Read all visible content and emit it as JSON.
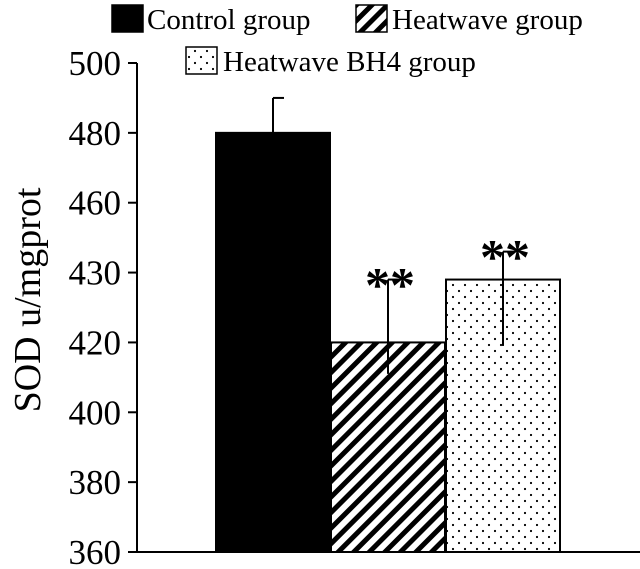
{
  "chart_data": {
    "type": "bar",
    "ylabel": "SOD u/mgprot",
    "xlabel": "",
    "ylim": [
      360,
      500
    ],
    "yticks": [
      500,
      480,
      460,
      430,
      420,
      400,
      380,
      360
    ],
    "grid": false,
    "legend_position": "top",
    "bars": [
      {
        "name": "Control group",
        "value": 480,
        "error": 10,
        "pattern": "solid",
        "significance": ""
      },
      {
        "name": "Heatwave group",
        "value": 420,
        "error": 9,
        "pattern": "diagonal-stripes",
        "significance": "**"
      },
      {
        "name": "Heatwave BH4 group",
        "value": 429,
        "error": 10,
        "pattern": "dots",
        "significance": "**"
      }
    ]
  },
  "colors": {
    "axis": "#000000",
    "bar_fill": "#000000",
    "background": "#ffffff"
  }
}
